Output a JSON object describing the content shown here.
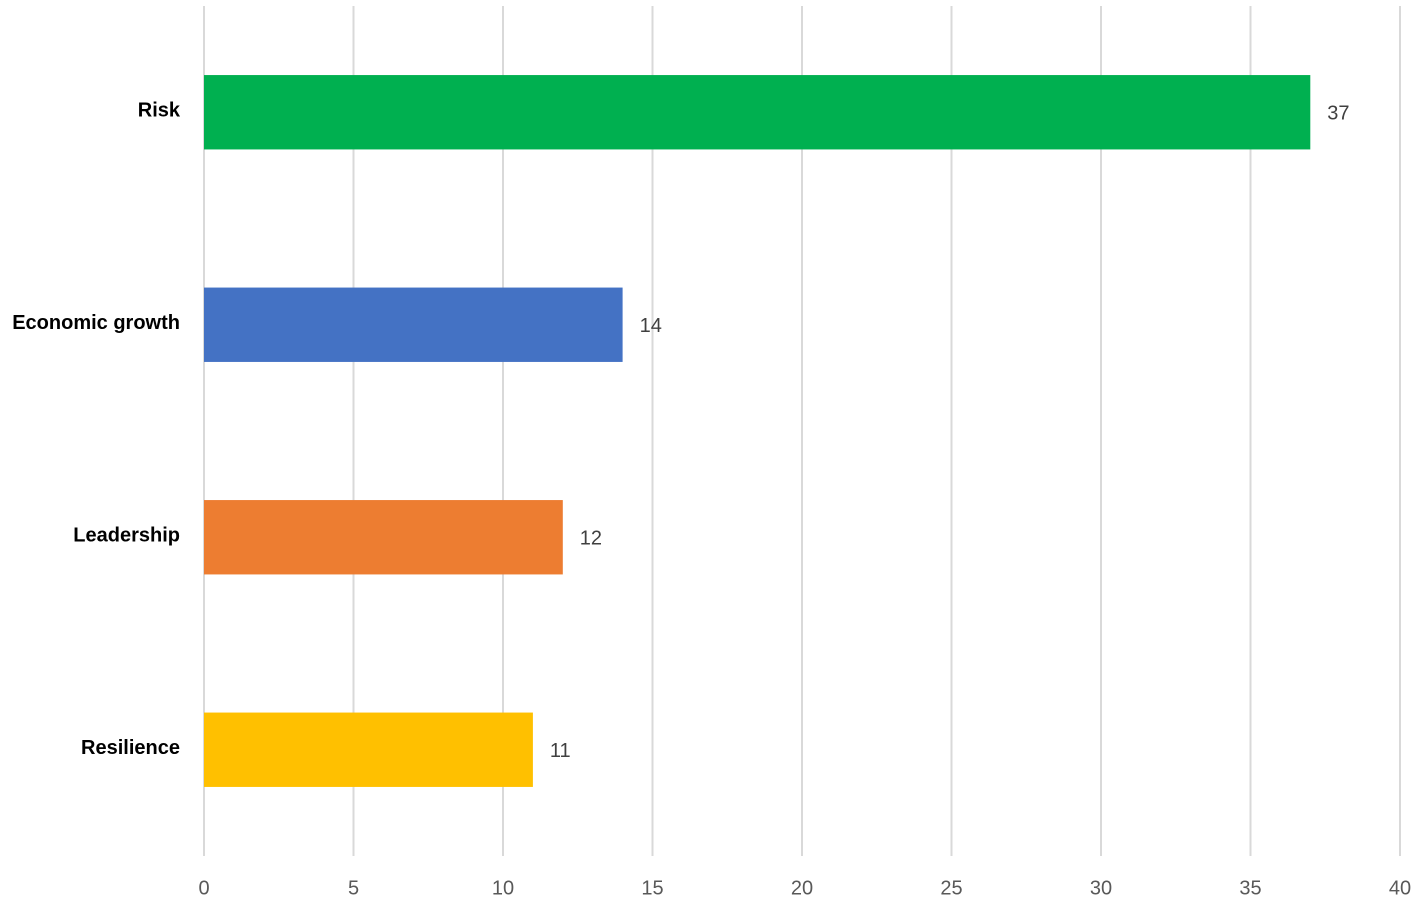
{
  "chart_data": {
    "type": "hbar",
    "categories": [
      "Risk",
      "Economic growth",
      "Leadership",
      "Resilience"
    ],
    "values": [
      37,
      14,
      12,
      11
    ],
    "colors": [
      "#00b050",
      "#4472c4",
      "#ed7d31",
      "#ffc000"
    ],
    "xlim": [
      0,
      40
    ],
    "xticks": [
      0,
      5,
      10,
      15,
      20,
      25,
      30,
      35,
      40
    ],
    "grid": true
  }
}
